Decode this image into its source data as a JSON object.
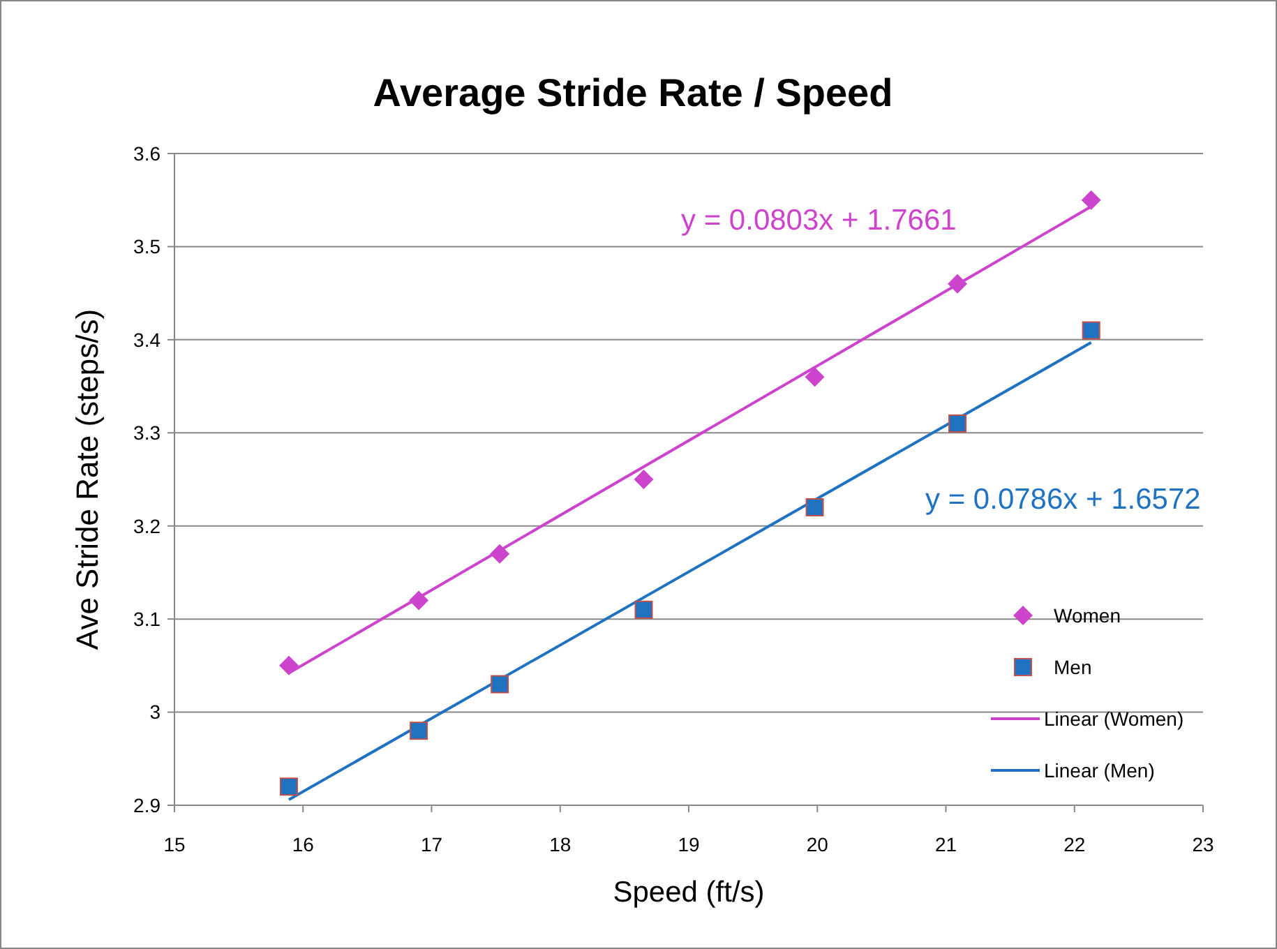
{
  "chart_data": {
    "type": "scatter",
    "title": "Average Stride Rate / Speed",
    "xlabel": "Speed (ft/s)",
    "ylabel": "Ave Stride Rate (steps/s)",
    "xlim": [
      15,
      23
    ],
    "xticks": [
      15,
      16,
      17,
      18,
      19,
      20,
      21,
      22,
      23
    ],
    "ylim": [
      2.9,
      3.6
    ],
    "yticks": [
      2.9,
      3,
      3.1,
      3.2,
      3.3,
      3.4,
      3.5,
      3.6
    ],
    "grid": "y",
    "legend": "right",
    "series": [
      {
        "name": "Women",
        "type": "scatter",
        "marker": "diamond",
        "color": "#cc44cc",
        "x": [
          15.89,
          16.9,
          17.53,
          18.65,
          19.98,
          21.09,
          22.13
        ],
        "values": [
          3.05,
          3.12,
          3.17,
          3.25,
          3.36,
          3.46,
          3.55
        ]
      },
      {
        "name": "Men",
        "type": "scatter",
        "marker": "square",
        "color": "#1f72c0",
        "x": [
          15.89,
          16.9,
          17.53,
          18.65,
          19.98,
          21.09,
          22.13
        ],
        "values": [
          2.92,
          2.98,
          3.03,
          3.11,
          3.22,
          3.31,
          3.41
        ]
      },
      {
        "name": "Linear (Women)",
        "type": "line",
        "color": "#cc44cc",
        "x": [
          15.89,
          22.13
        ],
        "values": [
          3.042,
          3.543
        ]
      },
      {
        "name": "Linear (Men)",
        "type": "line",
        "color": "#1f72c0",
        "x": [
          15.89,
          22.13
        ],
        "values": [
          2.906,
          3.397
        ]
      }
    ],
    "annotations": [
      "y = 0.0803x + 1.7661",
      "y = 0.0786x + 1.6572"
    ]
  }
}
